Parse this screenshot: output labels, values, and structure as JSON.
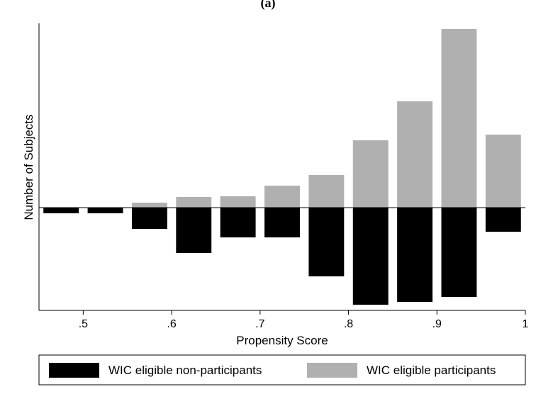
{
  "panel_label": "(a)",
  "chart_data": {
    "type": "bar",
    "title": "",
    "xlabel": "Propensity Score",
    "ylabel": "Number of Subjects",
    "x_ticks": [
      ".5",
      ".6",
      ".7",
      ".8",
      ".9",
      "1"
    ],
    "x_tick_values": [
      0.5,
      0.6,
      0.7,
      0.8,
      0.9,
      1.0
    ],
    "xlim": [
      0.45,
      1.0
    ],
    "ylim": [
      -145,
      260
    ],
    "y_ticks_shown": false,
    "grid": false,
    "legend_position": "bottom",
    "bin_centers": [
      0.475,
      0.525,
      0.575,
      0.625,
      0.675,
      0.725,
      0.775,
      0.825,
      0.875,
      0.925,
      0.975
    ],
    "bin_width": 0.04,
    "series": [
      {
        "name": "WIC eligible participants",
        "color": "#b0b0b0",
        "direction": "up",
        "values": [
          0,
          0,
          7,
          15,
          16,
          31,
          46,
          95,
          150,
          252,
          103
        ]
      },
      {
        "name": "WIC eligible non-participants",
        "color": "#000000",
        "direction": "down",
        "values": [
          8,
          8,
          30,
          64,
          42,
          42,
          97,
          137,
          133,
          126,
          34
        ]
      }
    ],
    "legend": [
      {
        "label": "WIC eligible non-participants",
        "color": "#000000"
      },
      {
        "label": "WIC eligible participants",
        "color": "#b0b0b0"
      }
    ]
  }
}
